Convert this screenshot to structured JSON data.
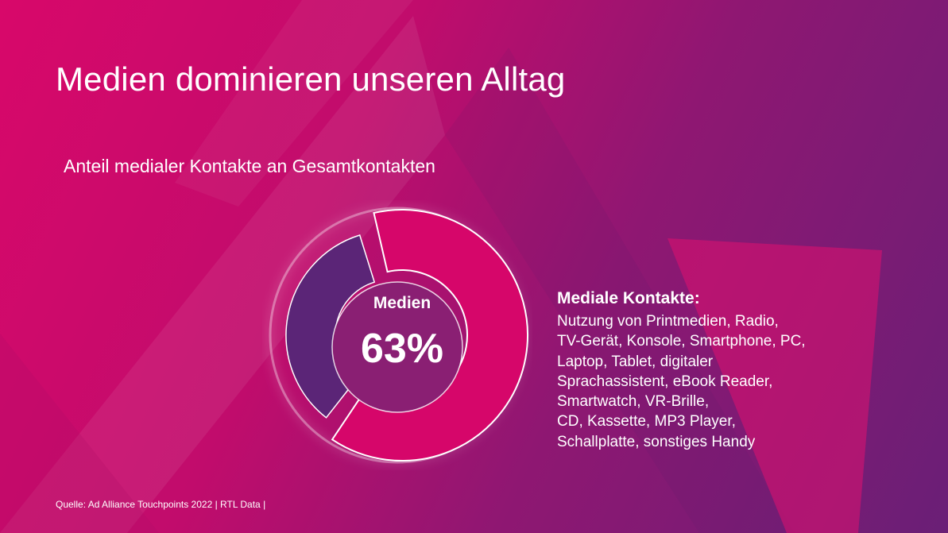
{
  "slide": {
    "title": "Medien dominieren unseren Alltag",
    "source": "Quelle: Ad Alliance Touchpoints 2022 | RTL Data |"
  },
  "chart_data": {
    "type": "pie",
    "title": "Anteil medialer Kontakte an Gesamtkontakten",
    "categories": [
      "Medien",
      ""
    ],
    "values": [
      63,
      37
    ],
    "center_label": "Medien",
    "center_value": "63%",
    "colors": [
      "#d6066a",
      "#5b2577"
    ],
    "legend": "right"
  },
  "legend": {
    "heading": "Mediale Kontakte:",
    "lines": [
      "Nutzung von Printmedien, Radio,",
      "TV-Gerät, Konsole, Smartphone, PC,",
      "Laptop, Tablet, digitaler",
      "Sprachassistent, eBook Reader,",
      "Smartwatch, VR-Brille,",
      "CD, Kassette, MP3 Player,",
      "Schallplatte, sonstiges Handy"
    ]
  },
  "colors": {
    "brand_pink": "#d6066a",
    "brand_purple": "#5b2577",
    "text": "#ffffff"
  }
}
